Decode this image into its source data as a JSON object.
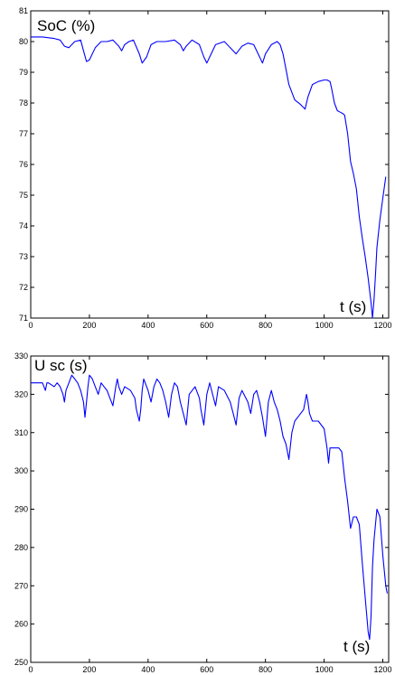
{
  "colors": {
    "line": "#0000ff",
    "axes": "#000000",
    "background": "#ffffff"
  },
  "chart_data": [
    {
      "type": "line",
      "title": "",
      "inner_label": "SoC (%)",
      "xlabel": "t (s)",
      "ylabel": "",
      "xlim": [
        0,
        1220
      ],
      "ylim": [
        71,
        81
      ],
      "grid": false,
      "xticks": [
        0,
        200,
        400,
        600,
        800,
        1000,
        1200
      ],
      "yticks": [
        71,
        72,
        73,
        74,
        75,
        76,
        77,
        78,
        79,
        80,
        81
      ],
      "series": [
        {
          "x": [
            0,
            40,
            80,
            100,
            115,
            130,
            150,
            170,
            180,
            190,
            200,
            220,
            240,
            260,
            280,
            300,
            310,
            320,
            335,
            350,
            370,
            380,
            395,
            410,
            430,
            460,
            490,
            510,
            520,
            530,
            550,
            575,
            590,
            600,
            610,
            630,
            660,
            680,
            700,
            720,
            740,
            760,
            780,
            790,
            800,
            820,
            840,
            850,
            860,
            870,
            880,
            900,
            920,
            935,
            945,
            960,
            980,
            1000,
            1010,
            1020,
            1025,
            1035,
            1045,
            1055,
            1065,
            1070,
            1080,
            1090,
            1100,
            1110,
            1120,
            1130,
            1140,
            1150,
            1160,
            1165,
            1170,
            1175,
            1180,
            1190,
            1200,
            1210
          ],
          "y": [
            80.15,
            80.15,
            80.1,
            80.05,
            79.85,
            79.8,
            80.0,
            80.05,
            79.7,
            79.35,
            79.4,
            79.8,
            80.0,
            80.0,
            80.05,
            79.85,
            79.7,
            79.9,
            80.0,
            80.05,
            79.6,
            79.3,
            79.5,
            79.9,
            80.0,
            80.0,
            80.05,
            79.9,
            79.7,
            79.85,
            80.05,
            79.9,
            79.5,
            79.3,
            79.5,
            79.9,
            80.0,
            79.8,
            79.6,
            79.85,
            79.95,
            79.9,
            79.5,
            79.3,
            79.6,
            79.9,
            80.0,
            79.9,
            79.6,
            79.1,
            78.6,
            78.1,
            77.95,
            77.8,
            78.2,
            78.6,
            78.7,
            78.75,
            78.75,
            78.7,
            78.5,
            78.0,
            77.75,
            77.7,
            77.65,
            77.6,
            77.0,
            76.1,
            75.7,
            75.2,
            74.3,
            73.6,
            73.0,
            72.3,
            71.5,
            71.0,
            71.6,
            72.4,
            73.3,
            74.2,
            74.9,
            75.6
          ]
        }
      ]
    },
    {
      "type": "line",
      "title": "",
      "inner_label": "U sc (s)",
      "xlabel": "t (s)",
      "ylabel": "",
      "xlim": [
        0,
        1220
      ],
      "ylim": [
        250,
        330
      ],
      "grid": false,
      "xticks": [
        0,
        200,
        400,
        600,
        800,
        1000,
        1200
      ],
      "yticks": [
        250,
        260,
        270,
        280,
        290,
        300,
        310,
        320,
        330
      ],
      "series": [
        {
          "x": [
            0,
            40,
            50,
            55,
            60,
            80,
            90,
            100,
            110,
            115,
            120,
            130,
            140,
            150,
            160,
            170,
            180,
            185,
            190,
            195,
            200,
            210,
            220,
            230,
            240,
            250,
            260,
            270,
            280,
            290,
            295,
            300,
            310,
            320,
            340,
            355,
            360,
            370,
            375,
            380,
            385,
            390,
            400,
            410,
            420,
            430,
            440,
            450,
            460,
            470,
            480,
            490,
            500,
            510,
            520,
            530,
            540,
            560,
            575,
            580,
            590,
            600,
            610,
            620,
            630,
            640,
            660,
            680,
            690,
            700,
            710,
            720,
            740,
            750,
            760,
            770,
            780,
            790,
            800,
            810,
            820,
            830,
            840,
            850,
            860,
            870,
            880,
            890,
            900,
            910,
            920,
            930,
            940,
            945,
            950,
            960,
            980,
            1000,
            1010,
            1015,
            1020,
            1030,
            1050,
            1060,
            1070,
            1080,
            1090,
            1100,
            1110,
            1120,
            1130,
            1140,
            1150,
            1155,
            1160,
            1165,
            1170,
            1180,
            1190,
            1200,
            1210,
            1215
          ],
          "y": [
            323,
            323,
            321,
            323,
            323,
            322,
            323,
            322,
            320,
            318,
            321,
            323,
            325,
            324,
            323,
            321,
            318,
            314,
            318,
            322,
            325,
            324,
            322,
            320,
            323,
            322,
            321,
            319,
            317,
            322,
            324,
            322,
            320,
            322,
            321,
            319,
            316,
            313,
            316,
            321,
            324,
            323,
            321,
            318,
            322,
            324,
            323,
            321,
            318,
            314,
            320,
            323,
            322,
            318,
            315,
            312,
            320,
            322,
            319,
            316,
            312,
            320,
            323,
            320,
            317,
            322,
            321,
            318,
            315,
            312,
            319,
            321,
            318,
            315,
            320,
            321,
            318,
            314,
            309,
            318,
            321,
            318,
            316,
            313,
            309,
            307,
            303,
            310,
            313,
            314,
            315,
            316,
            320,
            318,
            315,
            313,
            313,
            311,
            306,
            302,
            306,
            306,
            306,
            305,
            298,
            292,
            285,
            288,
            288,
            286,
            276,
            267,
            258,
            256,
            262,
            275,
            282,
            290,
            288,
            278,
            270,
            268
          ]
        }
      ]
    }
  ]
}
